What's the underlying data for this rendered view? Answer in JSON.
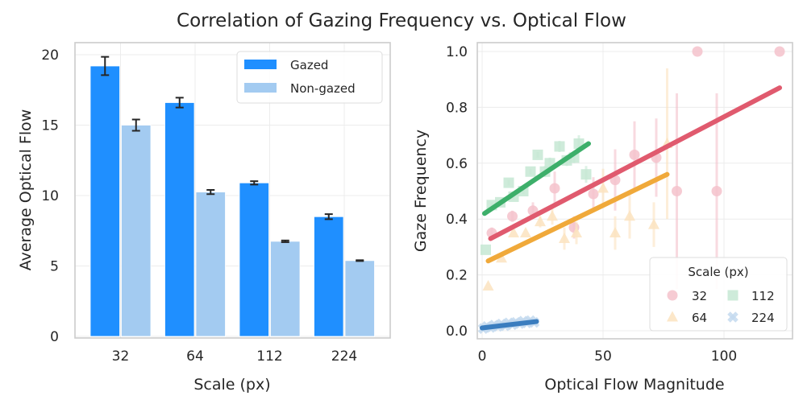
{
  "title": "Correlation of Gazing Frequency vs. Optical Flow",
  "chart_data": [
    {
      "type": "bar",
      "title": "",
      "xlabel": "Scale (px)",
      "ylabel": "Average Optical Flow",
      "categories": [
        "32",
        "64",
        "112",
        "224"
      ],
      "ylim": [
        0,
        21
      ],
      "yticks": [
        0,
        5,
        10,
        15,
        20
      ],
      "grid": true,
      "legend_position": "top-right",
      "series": [
        {
          "name": "Gazed",
          "color": "#1f8fff",
          "values": [
            19.2,
            16.6,
            10.9,
            8.5
          ],
          "errors": [
            0.65,
            0.35,
            0.12,
            0.18
          ]
        },
        {
          "name": "Non-gazed",
          "color": "#a3cbf1",
          "values": [
            15.0,
            10.25,
            6.75,
            5.38
          ],
          "errors": [
            0.4,
            0.15,
            0.06,
            0.03
          ]
        }
      ]
    },
    {
      "type": "scatter",
      "title": "",
      "xlabel": "Optical Flow Magnitude",
      "ylabel": "Gaze Frequency",
      "xlim": [
        -2,
        128
      ],
      "ylim": [
        -0.03,
        1.03
      ],
      "xticks": [
        0,
        50,
        100
      ],
      "yticks": [
        0.0,
        0.2,
        0.4,
        0.6,
        0.8,
        1.0
      ],
      "ytick_labels": [
        "0.0",
        "0.2",
        "0.4",
        "0.6",
        "0.8",
        "1.0"
      ],
      "grid": true,
      "legend_title": "Scale (px)",
      "legend_position": "bottom-right",
      "series": [
        {
          "name": "32",
          "marker": "circle",
          "color": "#e05a6e",
          "marker_color": "#f4c2cb",
          "points": [
            {
              "x": 4,
              "y": 0.35,
              "err": 0.02
            },
            {
              "x": 12.5,
              "y": 0.41,
              "err": 0.02
            },
            {
              "x": 21,
              "y": 0.43,
              "err": 0.03
            },
            {
              "x": 30,
              "y": 0.51,
              "err": 0.06
            },
            {
              "x": 38,
              "y": 0.37,
              "err": 0.04
            },
            {
              "x": 46,
              "y": 0.49,
              "err": 0.06
            },
            {
              "x": 55,
              "y": 0.54,
              "err": 0.11
            },
            {
              "x": 63,
              "y": 0.63,
              "err": 0.12
            },
            {
              "x": 72,
              "y": 0.62,
              "err": 0.14
            },
            {
              "x": 80.5,
              "y": 0.5,
              "err": 0.35
            },
            {
              "x": 97,
              "y": 0.5,
              "err": 0.35
            },
            {
              "x": 89,
              "y": 1.0,
              "err": 0
            },
            {
              "x": 123,
              "y": 1.0,
              "err": 0
            }
          ],
          "fit": {
            "x": [
              3.5,
              123
            ],
            "y": [
              0.33,
              0.87
            ]
          }
        },
        {
          "name": "64",
          "marker": "triangle",
          "color": "#f0a93a",
          "marker_color": "#fbe3c0",
          "points": [
            {
              "x": 2.5,
              "y": 0.16,
              "err": 0.0
            },
            {
              "x": 8,
              "y": 0.26,
              "err": 0.0
            },
            {
              "x": 13,
              "y": 0.35,
              "err": 0.0
            },
            {
              "x": 18,
              "y": 0.35,
              "err": 0.0
            },
            {
              "x": 24,
              "y": 0.39,
              "err": 0.02
            },
            {
              "x": 29,
              "y": 0.41,
              "err": 0.03
            },
            {
              "x": 34,
              "y": 0.33,
              "err": 0.04
            },
            {
              "x": 39,
              "y": 0.35,
              "err": 0.04
            },
            {
              "x": 50,
              "y": 0.51,
              "err": 0.07
            },
            {
              "x": 55,
              "y": 0.35,
              "err": 0.06
            },
            {
              "x": 61,
              "y": 0.41,
              "err": 0.08
            },
            {
              "x": 71,
              "y": 0.38,
              "err": 0.08
            },
            {
              "x": 76.5,
              "y": 0.67,
              "err": 0.27
            }
          ],
          "fit": {
            "x": [
              2.5,
              76.5
            ],
            "y": [
              0.25,
              0.56
            ]
          }
        },
        {
          "name": "112",
          "marker": "square",
          "color": "#3daf6a",
          "marker_color": "#c6e8d4",
          "points": [
            {
              "x": 1.5,
              "y": 0.29,
              "err": 0.0
            },
            {
              "x": 4,
              "y": 0.45,
              "err": 0.01
            },
            {
              "x": 7.5,
              "y": 0.46,
              "err": 0.01
            },
            {
              "x": 11,
              "y": 0.53,
              "err": 0.01
            },
            {
              "x": 13,
              "y": 0.48,
              "err": 0.01
            },
            {
              "x": 17,
              "y": 0.5,
              "err": 0.01
            },
            {
              "x": 20,
              "y": 0.57,
              "err": 0.01
            },
            {
              "x": 23,
              "y": 0.63,
              "err": 0.01
            },
            {
              "x": 26,
              "y": 0.57,
              "err": 0.02
            },
            {
              "x": 28,
              "y": 0.6,
              "err": 0.02
            },
            {
              "x": 32,
              "y": 0.66,
              "err": 0.02
            },
            {
              "x": 35,
              "y": 0.61,
              "err": 0.02
            },
            {
              "x": 38,
              "y": 0.62,
              "err": 0.02
            },
            {
              "x": 40,
              "y": 0.67,
              "err": 0.03
            },
            {
              "x": 43,
              "y": 0.56,
              "err": 0.03
            }
          ],
          "fit": {
            "x": [
              1,
              44
            ],
            "y": [
              0.42,
              0.67
            ]
          }
        },
        {
          "name": "224",
          "marker": "x",
          "color": "#3a7dbf",
          "marker_color": "#c3d9ef",
          "points": [
            {
              "x": 0.5,
              "y": 0.008,
              "err": 0
            },
            {
              "x": 2,
              "y": 0.015,
              "err": 0
            },
            {
              "x": 3.5,
              "y": 0.012,
              "err": 0
            },
            {
              "x": 5,
              "y": 0.02,
              "err": 0
            },
            {
              "x": 6.5,
              "y": 0.016,
              "err": 0
            },
            {
              "x": 8,
              "y": 0.024,
              "err": 0
            },
            {
              "x": 9.5,
              "y": 0.018,
              "err": 0
            },
            {
              "x": 11,
              "y": 0.028,
              "err": 0
            },
            {
              "x": 12.5,
              "y": 0.022,
              "err": 0
            },
            {
              "x": 14,
              "y": 0.03,
              "err": 0
            },
            {
              "x": 15.5,
              "y": 0.026,
              "err": 0
            },
            {
              "x": 17,
              "y": 0.034,
              "err": 0
            },
            {
              "x": 18.5,
              "y": 0.028,
              "err": 0
            },
            {
              "x": 20,
              "y": 0.036,
              "err": 0
            },
            {
              "x": 21.5,
              "y": 0.03,
              "err": 0
            }
          ],
          "fit": {
            "x": [
              0,
              22.5
            ],
            "y": [
              0.01,
              0.033
            ]
          }
        }
      ]
    }
  ]
}
